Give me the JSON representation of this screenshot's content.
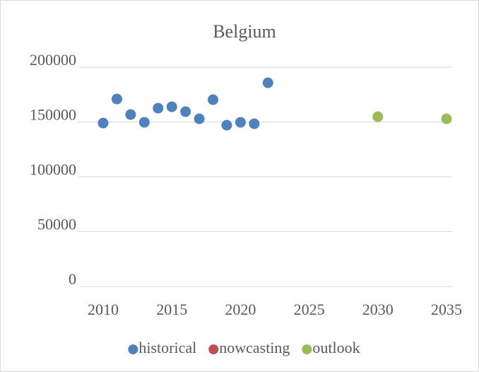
{
  "chart_data": {
    "type": "scatter",
    "title": "Belgium",
    "series": [
      {
        "name": "historical",
        "color": "#4f81bd",
        "x": [
          2010,
          2011,
          2012,
          2013,
          2014,
          2015,
          2016,
          2017,
          2018,
          2019,
          2020,
          2021,
          2022
        ],
        "values": [
          149000,
          171000,
          156800,
          149700,
          162600,
          163900,
          159400,
          152900,
          170300,
          147100,
          149700,
          148400,
          185800
        ]
      },
      {
        "name": "nowcasting",
        "color": "#c0504d",
        "x": [],
        "values": []
      },
      {
        "name": "outlook",
        "color": "#9bbb59",
        "x": [
          2030,
          2035
        ],
        "values": [
          154800,
          152900
        ]
      }
    ],
    "xlim": [
      2010,
      2035
    ],
    "xticks": [
      2010,
      2015,
      2020,
      2025,
      2030,
      2035
    ],
    "ylim": [
      0,
      200000
    ],
    "yticks": [
      0,
      50000,
      100000,
      150000,
      200000
    ],
    "grid": true,
    "legend": "bottom"
  }
}
